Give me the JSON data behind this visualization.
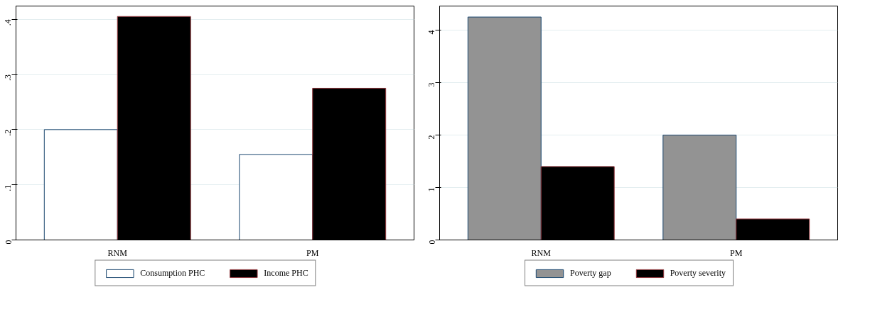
{
  "chart_data": [
    {
      "type": "bar",
      "categories": [
        "RNM",
        "PM"
      ],
      "ylim": [
        0,
        0.424
      ],
      "yticks": [
        {
          "value": 0,
          "label": "0"
        },
        {
          "value": 0.1,
          "label": ".1"
        },
        {
          "value": 0.2,
          "label": ".2"
        },
        {
          "value": 0.3,
          "label": ".3"
        },
        {
          "value": 0.4,
          "label": ".4"
        }
      ],
      "grid": "y",
      "legend": "bottom",
      "series": [
        {
          "name": "Consumption PHC",
          "color": "#ffffff",
          "values": [
            0.2,
            0.155
          ]
        },
        {
          "name": "Income PHC",
          "color": "#000000",
          "values": [
            0.405,
            0.275
          ]
        }
      ]
    },
    {
      "type": "bar",
      "categories": [
        "RNM",
        "PM"
      ],
      "ylim": [
        0,
        4.46
      ],
      "yticks": [
        0,
        1,
        2,
        3,
        4
      ],
      "grid": "y",
      "legend": "bottom",
      "series": [
        {
          "name": "Poverty gap",
          "color": "#939393",
          "values": [
            4.25,
            2.0
          ]
        },
        {
          "name": "Poverty severity",
          "color": "#000000",
          "values": [
            1.4,
            0.4
          ]
        }
      ]
    }
  ]
}
